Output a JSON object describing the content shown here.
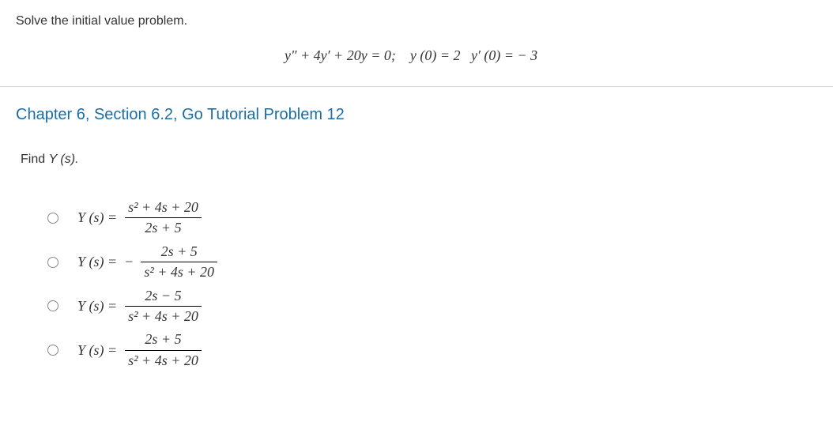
{
  "colors": {
    "background": "#ffffff",
    "text": "#333333",
    "accent": "#1a6ea5",
    "divider": "#d8d8d8",
    "radio_border": "#888888"
  },
  "problem": {
    "instruction": "Solve the initial value problem.",
    "equation_parts": {
      "lhs": "y″ + 4y′ + 20y = 0;",
      "ic1": "y (0) = 2",
      "ic2": "y′ (0) =  − 3"
    }
  },
  "section": {
    "title": "Chapter 6, Section 6.2, Go Tutorial Problem 12",
    "prompt_prefix": "Find ",
    "prompt_var": "Y",
    "prompt_arg": " (s).",
    "options": [
      {
        "lhs_var": "Y",
        "lhs_arg": " (s) = ",
        "negative": false,
        "num": "s² + 4s + 20",
        "den": "2s + 5"
      },
      {
        "lhs_var": "Y",
        "lhs_arg": " (s) = ",
        "negative": true,
        "num": "2s + 5",
        "den": "s² + 4s + 20"
      },
      {
        "lhs_var": "Y",
        "lhs_arg": " (s) = ",
        "negative": false,
        "num": "2s − 5",
        "den": "s² + 4s + 20"
      },
      {
        "lhs_var": "Y",
        "lhs_arg": " (s) = ",
        "negative": false,
        "num": "2s + 5",
        "den": "s² + 4s + 20"
      }
    ]
  }
}
